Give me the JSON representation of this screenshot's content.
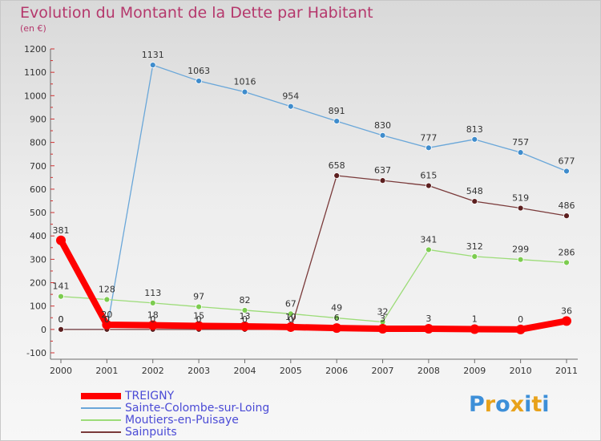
{
  "title": "Evolution du Montant de la Dette par Habitant",
  "subtitle": "(en €)",
  "logo": {
    "text": "Proxiti",
    "letters": [
      "P",
      "r",
      "o",
      "x",
      "i",
      "t",
      "i"
    ],
    "colors": [
      "#3d8fd8",
      "#e8a21b",
      "#3d8fd8",
      "#e8a21b",
      "#3d8fd8",
      "#e8a21b",
      "#3d8fd8"
    ]
  },
  "chart_data": {
    "type": "line",
    "x": [
      "2000",
      "2001",
      "2002",
      "2003",
      "2004",
      "2005",
      "2006",
      "2007",
      "2008",
      "2009",
      "2010",
      "2011"
    ],
    "ylim": [
      -100,
      1200
    ],
    "yticks": [
      -100,
      0,
      100,
      200,
      300,
      400,
      500,
      600,
      700,
      800,
      900,
      1000,
      1100,
      1200
    ],
    "grid": false,
    "legend_position": "bottom-left",
    "series": [
      {
        "name": "TREIGNY",
        "color": "#ff0000",
        "marker_color": "#ff0000",
        "width": 8,
        "values": [
          381,
          20,
          18,
          15,
          13,
          10,
          6,
          3,
          3,
          1,
          0,
          36
        ],
        "labels": [
          "381",
          "20",
          "18",
          "15",
          "13",
          "10",
          "6",
          "3",
          "3",
          "1",
          "0",
          "36"
        ]
      },
      {
        "name": "Sainte-Colombe-sur-Loing",
        "color": "#6aa7d9",
        "marker_color": "#3f8ccc",
        "width": 1.3,
        "values": [
          0,
          0,
          1131,
          1063,
          1016,
          954,
          891,
          830,
          777,
          813,
          757,
          677
        ],
        "labels": [
          "0",
          "0",
          "1131",
          "1063",
          "1016",
          "954",
          "891",
          "830",
          "777",
          "813",
          "757",
          "677"
        ]
      },
      {
        "name": "Moutiers-en-Puisaye",
        "color": "#9cdc78",
        "marker_color": "#7ccc4f",
        "width": 1.3,
        "values": [
          141,
          128,
          113,
          97,
          82,
          67,
          49,
          32,
          341,
          312,
          299,
          286
        ],
        "labels": [
          "141",
          "128",
          "113",
          "97",
          "82",
          "67",
          "49",
          "32",
          "341",
          "312",
          "299",
          "286"
        ]
      },
      {
        "name": "Sainpuits",
        "color": "#7a3a3a",
        "marker_color": "#5c1f1f",
        "width": 1.3,
        "values": [
          0,
          0,
          0,
          0,
          0,
          0,
          658,
          637,
          615,
          548,
          519,
          486
        ],
        "labels": [
          "0",
          "0",
          "0",
          "0",
          "0",
          "0",
          "658",
          "637",
          "615",
          "548",
          "519",
          "486"
        ]
      }
    ]
  }
}
